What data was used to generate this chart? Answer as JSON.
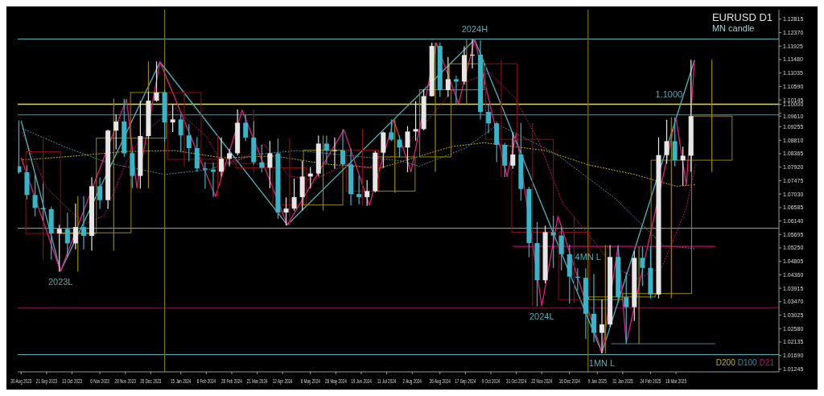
{
  "chart_data": {
    "type": "candlestick",
    "title": "EURUSD D1",
    "subtitle": "MN candle",
    "xlim": [
      "2023-08-27",
      "2025-06-15"
    ],
    "xticks": [
      {
        "value": "2023-08-30",
        "label": "30 Aug 2023"
      },
      {
        "value": "2023-09-21",
        "label": "21 Sep 2023"
      },
      {
        "value": "2023-10-13",
        "label": "13 Oct 2023"
      },
      {
        "value": "2023-11-06",
        "label": "6 Nov 2023"
      },
      {
        "value": "2023-11-28",
        "label": "28 Nov 2023"
      },
      {
        "value": "2023-12-20",
        "label": "20 Dec 2023"
      },
      {
        "value": "2024-01-15",
        "label": "15 Jan 2024"
      },
      {
        "value": "2024-02-06",
        "label": "6 Feb 2024"
      },
      {
        "value": "2024-02-28",
        "label": "28 Feb 2024"
      },
      {
        "value": "2024-03-21",
        "label": "21 Mar 2024"
      },
      {
        "value": "2024-04-12",
        "label": "12 Apr 2024"
      },
      {
        "value": "2024-05-06",
        "label": "6 May 2024"
      },
      {
        "value": "2024-05-28",
        "label": "28 May 2024"
      },
      {
        "value": "2024-06-19",
        "label": "19 Jun 2024"
      },
      {
        "value": "2024-07-11",
        "label": "11 Jul 2024"
      },
      {
        "value": "2024-08-02",
        "label": "2 Aug 2024"
      },
      {
        "value": "2024-08-26",
        "label": "26 Aug 2024"
      },
      {
        "value": "2024-09-17",
        "label": "17 Sep 2024"
      },
      {
        "value": "2024-10-09",
        "label": "9 Oct 2024"
      },
      {
        "value": "2024-10-31",
        "label": "31 Oct 2024"
      },
      {
        "value": "2024-11-22",
        "label": "22 Nov 2024"
      },
      {
        "value": "2024-12-16",
        "label": "16 Dec 2024"
      },
      {
        "value": "2025-01-09",
        "label": "9 Jan 2025"
      },
      {
        "value": "2025-01-31",
        "label": "31 Jan 2025"
      },
      {
        "value": "2025-02-24",
        "label": "24 Feb 2025"
      },
      {
        "value": "2025-03-18",
        "label": "18 Mar 2025"
      }
    ],
    "ylim": [
      1.0115,
      1.1313
    ],
    "yticks": [
      {
        "value": 1.12815,
        "label": "1.12815"
      },
      {
        "value": 1.1237,
        "label": "1.12370"
      },
      {
        "value": 1.11925,
        "label": "1.11925"
      },
      {
        "value": 1.1148,
        "label": "1.11480"
      },
      {
        "value": 1.11035,
        "label": "1.11035"
      },
      {
        "value": 1.1059,
        "label": "1.10590"
      },
      {
        "value": 1.10145,
        "label": "1.10145"
      },
      {
        "value": 1.1,
        "label": "1.10000"
      },
      {
        "value": 1.097,
        "label": null
      },
      {
        "value": 1.0961,
        "label": "1.09610"
      },
      {
        "value": 1.09255,
        "label": "1.09255"
      },
      {
        "value": 1.0881,
        "label": "1.08810"
      },
      {
        "value": 1.08365,
        "label": "1.08365"
      },
      {
        "value": 1.0792,
        "label": "1.07920"
      },
      {
        "value": 1.07475,
        "label": "1.07475"
      },
      {
        "value": 1.0703,
        "label": "1.07030"
      },
      {
        "value": 1.06585,
        "label": "1.06585"
      },
      {
        "value": 1.0614,
        "label": "1.06140"
      },
      {
        "value": 1.05695,
        "label": "1.05695"
      },
      {
        "value": 1.0525,
        "label": "1.05250"
      },
      {
        "value": 1.04805,
        "label": "1.04805"
      },
      {
        "value": 1.0436,
        "label": "1.04360"
      },
      {
        "value": 1.03915,
        "label": "1.03915"
      },
      {
        "value": 1.0347,
        "label": "1.03470"
      },
      {
        "value": 1.03025,
        "label": "1.03025"
      },
      {
        "value": 1.0258,
        "label": "1.02580"
      },
      {
        "value": 1.02135,
        "label": "1.02135"
      },
      {
        "value": 1.0169,
        "label": "1.01690"
      },
      {
        "value": 1.01245,
        "label": "1.01245"
      }
    ],
    "legend": "bottom right",
    "series": [
      {
        "type": "candlestick",
        "x": [
          "2023-09-18",
          "2023-10-18",
          "2023-11-18",
          "2023-12-18",
          "2024-01-18",
          "2024-02-16",
          "2024-03-18",
          "2024-04-18",
          "2024-05-17",
          "2024-06-20",
          "2024-07-18",
          "2024-08-22",
          "2024-09-18",
          "2024-10-18",
          "2024-11-14",
          "2024-12-20",
          "2025-01-16",
          "2025-02-14",
          "2025-03-14",
          "2025-04-18"
        ],
        "ohlc": [
          [
            1.0843,
            1.0882,
            1.0488,
            1.0573
          ],
          [
            1.0573,
            1.0695,
            1.0448,
            1.0575
          ],
          [
            1.0575,
            1.1017,
            1.0517,
            1.0888
          ],
          [
            1.0888,
            1.114,
            1.0724,
            1.1039
          ],
          [
            1.1039,
            1.1046,
            1.0797,
            1.0818
          ],
          [
            1.0818,
            1.0897,
            1.0695,
            1.0804
          ],
          [
            1.0804,
            1.0981,
            1.0774,
            1.079
          ],
          [
            1.079,
            1.0885,
            1.0601,
            1.0667
          ],
          [
            1.0667,
            1.0895,
            1.065,
            1.0848
          ],
          [
            1.0848,
            1.0916,
            1.0666,
            1.0713
          ],
          [
            1.0713,
            1.0948,
            1.0709,
            1.0826
          ],
          [
            1.0826,
            1.1202,
            1.0778,
            1.1048
          ],
          [
            1.1048,
            1.1214,
            1.1002,
            1.1134
          ],
          [
            1.1134,
            1.1145,
            1.0761,
            1.0884
          ],
          [
            1.0884,
            1.0937,
            1.0333,
            1.0577
          ],
          [
            1.0577,
            1.063,
            1.0343,
            1.0354
          ],
          [
            1.0354,
            1.0533,
            1.0178,
            1.0363
          ],
          [
            1.0363,
            1.0528,
            1.021,
            1.0374
          ],
          [
            1.0374,
            1.0955,
            1.036,
            1.0815
          ],
          [
            1.0815,
            1.1146,
            1.0778,
            1.0961
          ]
        ],
        "colors": [
          "#8b1010",
          "#9a8600",
          "#9a8600",
          "#9a8600",
          "#8b1010",
          "#8b1010",
          "#8b1010",
          "#8b1010",
          "#9a8600",
          "#8b1010",
          "#9a8600",
          "#9a8600",
          "#9a8600",
          "#8b1010",
          "#8b1010",
          "#8b1010",
          "#9a8600",
          "#9a8600",
          "#9a8600",
          "#9a8600"
        ]
      },
      {
        "type": "line",
        "name": "D200",
        "color": "#c8b400",
        "line_style": "dotted",
        "x": [
          "2023-08-31",
          "2023-10-06",
          "2023-11-28",
          "2024-01-10",
          "2024-02-20",
          "2024-04-05",
          "2024-05-20",
          "2024-07-05",
          "2024-09-05",
          "2024-10-03",
          "2024-11-25",
          "2025-01-01",
          "2025-02-10",
          "2025-03-18",
          "2025-04-04"
        ],
        "values": [
          1.0816,
          1.0826,
          1.0844,
          1.0847,
          1.0823,
          1.0829,
          1.0802,
          1.0789,
          1.086,
          1.0873,
          1.0847,
          1.08,
          1.0768,
          1.0729,
          1.0734
        ]
      },
      {
        "type": "line",
        "name": "D100",
        "color": "#3a8f96",
        "line_style": "dotted",
        "x": [
          "2023-08-31",
          "2023-10-06",
          "2023-11-14",
          "2024-01-01",
          "2024-02-08",
          "2024-03-20",
          "2024-04-25",
          "2024-06-12",
          "2024-07-23",
          "2024-08-08",
          "2024-09-17",
          "2024-10-15",
          "2024-12-04",
          "2025-01-24",
          "2025-03-07",
          "2025-04-04"
        ],
        "values": [
          1.092,
          1.086,
          1.0805,
          1.0768,
          1.0784,
          1.0834,
          1.0847,
          1.0829,
          1.0813,
          1.0795,
          1.0855,
          1.0933,
          1.0837,
          1.069,
          1.0533,
          1.0522
        ]
      },
      {
        "type": "line",
        "name": "D21",
        "color": "#c0106a",
        "line_style": "dotted",
        "x": [
          "2023-08-31",
          "2023-09-21",
          "2023-10-12",
          "2023-10-25",
          "2023-11-10",
          "2023-11-28",
          "2023-12-14",
          "2024-01-10",
          "2024-02-06",
          "2024-02-20",
          "2024-03-12",
          "2024-03-27",
          "2024-04-17",
          "2024-05-09",
          "2024-06-07",
          "2024-06-25",
          "2024-07-23",
          "2024-08-12",
          "2024-09-10",
          "2024-10-08",
          "2024-10-29",
          "2024-11-19",
          "2024-12-10",
          "2025-01-02",
          "2025-01-23",
          "2025-02-13",
          "2025-03-06",
          "2025-03-27",
          "2025-04-04"
        ],
        "values": [
          1.0907,
          1.0724,
          1.0645,
          1.0606,
          1.0632,
          1.0803,
          1.0907,
          1.0986,
          1.0894,
          1.0803,
          1.0829,
          1.0868,
          1.0763,
          1.075,
          1.0803,
          1.0789,
          1.0842,
          1.0933,
          1.1064,
          1.1104,
          1.1025,
          1.0881,
          1.0672,
          1.0567,
          1.0462,
          1.0423,
          1.0462,
          1.0658,
          1.0803
        ]
      },
      {
        "type": "line",
        "color": "#4fb3bf",
        "x": [
          "2023-08-30",
          "2023-10-03",
          "2023-12-28",
          "2024-04-16",
          "2024-09-25",
          "2025-01-13",
          "2025-04-03"
        ],
        "values": [
          1.0945,
          1.0448,
          1.114,
          1.0601,
          1.1214,
          1.0178,
          1.1146
        ]
      },
      {
        "type": "line",
        "color": "#e0207a",
        "x": [
          "2023-08-30",
          "2023-10-03",
          "2023-11-29",
          "2023-12-08",
          "2023-12-28",
          "2024-02-14",
          "2024-03-08",
          "2024-04-16",
          "2024-06-04",
          "2024-06-26",
          "2024-07-17",
          "2024-08-01",
          "2024-08-23",
          "2024-09-11",
          "2024-09-25",
          "2024-10-23",
          "2024-10-31",
          "2024-11-22",
          "2024-12-06",
          "2025-01-13",
          "2025-01-27",
          "2025-02-03",
          "2025-03-18",
          "2025-03-27",
          "2025-04-03"
        ],
        "values": [
          1.0823,
          1.0448,
          1.1017,
          1.0724,
          1.114,
          1.0695,
          1.0981,
          1.0601,
          1.0916,
          1.0666,
          1.0948,
          1.0777,
          1.1202,
          1.1002,
          1.1214,
          1.0761,
          1.0905,
          1.0333,
          1.063,
          1.0178,
          1.0533,
          1.021,
          1.0955,
          1.0732,
          1.1146
        ]
      },
      {
        "type": "line",
        "color": "#c0106a",
        "x": [
          "2024-10-28",
          "2025-04-21"
        ],
        "values": [
          1.053,
          1.053
        ]
      },
      {
        "type": "line",
        "color": "#3a6a70",
        "x": [
          "2025-01-21",
          "2025-04-21"
        ],
        "values": [
          1.0208,
          1.0208
        ]
      },
      {
        "x": [
          "2023-08-28",
          "2023-09-04",
          "2023-09-11",
          "2023-09-18",
          "2023-09-25",
          "2023-10-02",
          "2023-10-09",
          "2023-10-16",
          "2023-10-23",
          "2023-10-30",
          "2023-11-06",
          "2023-11-13",
          "2023-11-20",
          "2023-11-27",
          "2023-12-04",
          "2023-12-11",
          "2023-12-18",
          "2023-12-25",
          "2024-01-01",
          "2024-01-08",
          "2024-01-15",
          "2024-01-22",
          "2024-01-29",
          "2024-02-05",
          "2024-02-12",
          "2024-02-19",
          "2024-02-26",
          "2024-03-04",
          "2024-03-11",
          "2024-03-18",
          "2024-03-25",
          "2024-04-01",
          "2024-04-08",
          "2024-04-15",
          "2024-04-22",
          "2024-04-29",
          "2024-05-06",
          "2024-05-13",
          "2024-05-20",
          "2024-05-27",
          "2024-06-03",
          "2024-06-10",
          "2024-06-17",
          "2024-06-24",
          "2024-07-01",
          "2024-07-08",
          "2024-07-15",
          "2024-07-22",
          "2024-07-29",
          "2024-08-05",
          "2024-08-12",
          "2024-08-19",
          "2024-08-26",
          "2024-09-02",
          "2024-09-09",
          "2024-09-16",
          "2024-09-23",
          "2024-09-30",
          "2024-10-07",
          "2024-10-14",
          "2024-10-21",
          "2024-10-28",
          "2024-11-04",
          "2024-11-11",
          "2024-11-18",
          "2024-11-25",
          "2024-12-02",
          "2024-12-09",
          "2024-12-16",
          "2024-12-23",
          "2024-12-30",
          "2025-01-06",
          "2025-01-13",
          "2025-01-20",
          "2025-01-27",
          "2025-02-03",
          "2025-02-10",
          "2025-02-17",
          "2025-02-24",
          "2025-03-03",
          "2025-03-10",
          "2025-03-17",
          "2025-03-24",
          "2025-03-31"
        ],
        "ohlc": [
          [
            1.0795,
            1.0945,
            1.0772,
            1.0775
          ],
          [
            1.0775,
            1.0797,
            1.0687,
            1.07
          ],
          [
            1.07,
            1.0768,
            1.0631,
            1.0657
          ],
          [
            1.0657,
            1.0737,
            1.0616,
            1.0653
          ],
          [
            1.0653,
            1.066,
            1.0488,
            1.0573
          ],
          [
            1.0573,
            1.06,
            1.0448,
            1.0588
          ],
          [
            1.0588,
            1.064,
            1.0495,
            1.054
          ],
          [
            1.054,
            1.067,
            1.0522,
            1.0594
          ],
          [
            1.0594,
            1.0695,
            1.0522,
            1.0565
          ],
          [
            1.0565,
            1.0757,
            1.0517,
            1.0729
          ],
          [
            1.0729,
            1.0756,
            1.0656,
            1.0683
          ],
          [
            1.0683,
            1.0914,
            1.0656,
            1.0913
          ],
          [
            1.0913,
            1.0965,
            1.0852,
            1.0943
          ],
          [
            1.0943,
            1.1017,
            1.0828,
            1.0838
          ],
          [
            1.0838,
            1.0843,
            1.0724,
            1.0763
          ],
          [
            1.0763,
            1.1009,
            1.0723,
            1.0895
          ],
          [
            1.0895,
            1.104,
            1.0888,
            1.1012
          ],
          [
            1.1012,
            1.114,
            1.101,
            1.1039
          ],
          [
            1.1039,
            1.1046,
            1.0877,
            1.094
          ],
          [
            1.094,
            1.0999,
            1.091,
            1.095
          ],
          [
            1.095,
            1.0966,
            1.0845,
            1.0897
          ],
          [
            1.0897,
            1.0933,
            1.0813,
            1.0855
          ],
          [
            1.0855,
            1.089,
            1.0778,
            1.0788
          ],
          [
            1.0788,
            1.0807,
            1.0722,
            1.0784
          ],
          [
            1.0784,
            1.0806,
            1.0695,
            1.0777
          ],
          [
            1.0777,
            1.0889,
            1.0762,
            1.082
          ],
          [
            1.082,
            1.0851,
            1.0796,
            1.0838
          ],
          [
            1.0838,
            1.0981,
            1.0833,
            1.0939
          ],
          [
            1.0939,
            1.0964,
            1.088,
            1.089
          ],
          [
            1.089,
            1.0942,
            1.0802,
            1.0808
          ],
          [
            1.0808,
            1.0865,
            1.0776,
            1.079
          ],
          [
            1.079,
            1.0877,
            1.0724,
            1.0838
          ],
          [
            1.0838,
            1.0885,
            1.0623,
            1.0642
          ],
          [
            1.0642,
            1.069,
            1.0601,
            1.0655
          ],
          [
            1.0655,
            1.0753,
            1.065,
            1.0693
          ],
          [
            1.0693,
            1.0812,
            1.065,
            1.0761
          ],
          [
            1.0761,
            1.0791,
            1.0723,
            1.0771
          ],
          [
            1.0771,
            1.0895,
            1.0763,
            1.087
          ],
          [
            1.087,
            1.0895,
            1.0805,
            1.0847
          ],
          [
            1.0847,
            1.0889,
            1.0788,
            1.0848
          ],
          [
            1.0848,
            1.0916,
            1.0801,
            1.0801
          ],
          [
            1.0801,
            1.0852,
            1.0668,
            1.0703
          ],
          [
            1.0703,
            1.0762,
            1.0671,
            1.0693
          ],
          [
            1.0693,
            1.0748,
            1.0666,
            1.0713
          ],
          [
            1.0713,
            1.0844,
            1.071,
            1.084
          ],
          [
            1.084,
            1.0908,
            1.0791,
            1.0907
          ],
          [
            1.0907,
            1.0948,
            1.088,
            1.0883
          ],
          [
            1.0883,
            1.0895,
            1.0825,
            1.0857
          ],
          [
            1.0857,
            1.0926,
            1.0777,
            1.091
          ],
          [
            1.091,
            1.1009,
            1.0881,
            1.0918
          ],
          [
            1.0918,
            1.1048,
            1.0915,
            1.1027
          ],
          [
            1.1027,
            1.1202,
            1.1027,
            1.1193
          ],
          [
            1.1193,
            1.1202,
            1.1026,
            1.1047
          ],
          [
            1.1047,
            1.1155,
            1.1026,
            1.1083
          ],
          [
            1.1083,
            1.1093,
            1.1002,
            1.1075
          ],
          [
            1.1075,
            1.119,
            1.1068,
            1.1163
          ],
          [
            1.1163,
            1.1214,
            1.112,
            1.1164
          ],
          [
            1.1164,
            1.121,
            1.0951,
            1.0975
          ],
          [
            1.0975,
            1.0998,
            1.0906,
            1.0937
          ],
          [
            1.0937,
            1.0941,
            1.0811,
            1.0866
          ],
          [
            1.0866,
            1.0871,
            1.0761,
            1.0797
          ],
          [
            1.0797,
            1.0905,
            1.0788,
            1.0834
          ],
          [
            1.0834,
            1.0937,
            1.0683,
            1.072
          ],
          [
            1.072,
            1.0726,
            1.0496,
            1.0541
          ],
          [
            1.0541,
            1.0609,
            1.0333,
            1.0418
          ],
          [
            1.0418,
            1.0597,
            1.041,
            1.0577
          ],
          [
            1.0577,
            1.063,
            1.046,
            1.0566
          ],
          [
            1.0566,
            1.0594,
            1.0452,
            1.0504
          ],
          [
            1.0504,
            1.0535,
            1.0343,
            1.043
          ],
          [
            1.043,
            1.0456,
            1.0386,
            1.0426
          ],
          [
            1.0426,
            1.0456,
            1.0225,
            1.0307
          ],
          [
            1.0307,
            1.0437,
            1.0215,
            1.0244
          ],
          [
            1.0244,
            1.0353,
            1.0178,
            1.0272
          ],
          [
            1.0272,
            1.0533,
            1.0266,
            1.0495
          ],
          [
            1.0495,
            1.0532,
            1.0345,
            1.0362
          ],
          [
            1.0362,
            1.0442,
            1.021,
            1.0329
          ],
          [
            1.0329,
            1.0513,
            1.0285,
            1.0492
          ],
          [
            1.0492,
            1.0528,
            1.0401,
            1.0459
          ],
          [
            1.0459,
            1.0529,
            1.0359,
            1.0371
          ],
          [
            1.0371,
            1.0889,
            1.036,
            1.0832
          ],
          [
            1.0832,
            1.0947,
            1.0805,
            1.0878
          ],
          [
            1.0878,
            1.0955,
            1.0797,
            1.0815
          ],
          [
            1.0815,
            1.0858,
            1.0732,
            1.083
          ],
          [
            1.083,
            1.1146,
            1.0778,
            1.0961
          ]
        ],
        "colors": [
          "#37b6c9",
          "#37b6c9",
          "#37b6c9",
          "#37b6c9",
          "#37b6c9",
          "#e6e6e6",
          "#37b6c9",
          "#e6e6e6",
          "#37b6c9",
          "#e6e6e6",
          "#37b6c9",
          "#e6e6e6",
          "#e6e6e6",
          "#37b6c9",
          "#37b6c9",
          "#e6e6e6",
          "#e6e6e6",
          "#e6e6e6",
          "#37b6c9",
          "#e6e6e6",
          "#37b6c9",
          "#37b6c9",
          "#37b6c9",
          "#37b6c9",
          "#37b6c9",
          "#e6e6e6",
          "#e6e6e6",
          "#e6e6e6",
          "#37b6c9",
          "#37b6c9",
          "#37b6c9",
          "#e6e6e6",
          "#37b6c9",
          "#e6e6e6",
          "#e6e6e6",
          "#e6e6e6",
          "#e6e6e6",
          "#e6e6e6",
          "#37b6c9",
          "#e6e6e6",
          "#37b6c9",
          "#37b6c9",
          "#37b6c9",
          "#e6e6e6",
          "#e6e6e6",
          "#e6e6e6",
          "#37b6c9",
          "#37b6c9",
          "#e6e6e6",
          "#e6e6e6",
          "#e6e6e6",
          "#e6e6e6",
          "#37b6c9",
          "#e6e6e6",
          "#37b6c9",
          "#e6e6e6",
          "#e6e6e6",
          "#37b6c9",
          "#37b6c9",
          "#37b6c9",
          "#37b6c9",
          "#e6e6e6",
          "#37b6c9",
          "#37b6c9",
          "#37b6c9",
          "#e6e6e6",
          "#37b6c9",
          "#37b6c9",
          "#37b6c9",
          "#37b6c9",
          "#37b6c9",
          "#37b6c9",
          "#e6e6e6",
          "#e6e6e6",
          "#37b6c9",
          "#37b6c9",
          "#e6e6e6",
          "#37b6c9",
          "#37b6c9",
          "#e6e6e6",
          "#e6e6e6",
          "#37b6c9",
          "#e6e6e6",
          "#e6e6e6"
        ]
      }
    ],
    "ref_lines": [
      {
        "axis": "y",
        "value": 1.1216,
        "label": null,
        "color": "#5fb8c0"
      },
      {
        "axis": "y",
        "value": 1.1,
        "label": null,
        "color": "#e6e600"
      },
      {
        "axis": "y",
        "value": 1.0965,
        "label": null,
        "color": "#6f8a90"
      },
      {
        "axis": "y",
        "value": 1.059,
        "label": null,
        "color": "#5fb8c0"
      },
      {
        "axis": "y",
        "value": 1.0326,
        "label": null,
        "color": "#8b1a4a"
      },
      {
        "axis": "y",
        "value": 1.0172,
        "label": null,
        "color": "#5fb8c0"
      },
      {
        "axis": "x",
        "value": "2024-01-01",
        "label": null,
        "color": "#7a7400"
      },
      {
        "axis": "x",
        "value": "2025-01-01",
        "label": null,
        "color": "#7a7400"
      }
    ],
    "annotations": [
      {
        "text": "2023L",
        "x": "2023-10-03",
        "y": 1.0448
      },
      {
        "text": "2024H",
        "x": "2024-09-25",
        "y": 1.1214
      },
      {
        "text": "2024L",
        "x": "2024-11-22",
        "y": 1.0333
      },
      {
        "text": "1MN L",
        "x": "2025-01-13",
        "y": 1.0178
      },
      {
        "text": "4MN L",
        "x": "2025-01-01",
        "y": 1.053
      },
      {
        "text": "1.1000",
        "x": "2025-03-12",
        "y": 1.1
      }
    ]
  }
}
